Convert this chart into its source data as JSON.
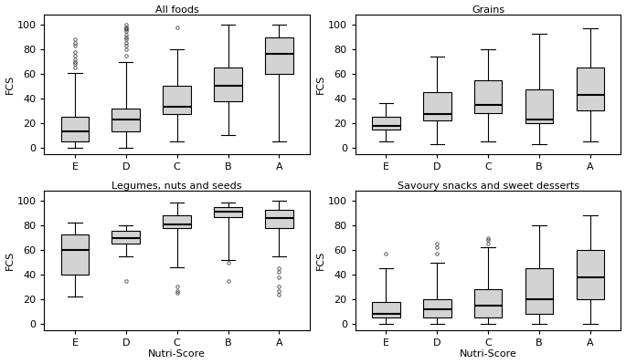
{
  "titles": [
    "All foods",
    "Grains",
    "Legumes, nuts and seeds",
    "Savoury snacks and sweet desserts"
  ],
  "categories": [
    "E",
    "D",
    "C",
    "B",
    "A"
  ],
  "xlabel": "Nutri-Score",
  "ylabel": "FCS",
  "ylim": [
    -5,
    108
  ],
  "yticks": [
    0,
    20,
    40,
    60,
    80,
    100
  ],
  "all_foods": {
    "E": {
      "q1": 5,
      "median": 13,
      "q3": 25,
      "whislo": 0,
      "whishi": 61,
      "fliers_hi": [
        65,
        68,
        70,
        72,
        75,
        78,
        83,
        85,
        88
      ],
      "fliers_lo": []
    },
    "D": {
      "q1": 13,
      "median": 23,
      "q3": 32,
      "whislo": 0,
      "whishi": 70,
      "fliers_hi": [
        75,
        80,
        83,
        85,
        88,
        90,
        92,
        95,
        96,
        97,
        98,
        100
      ],
      "fliers_lo": []
    },
    "C": {
      "q1": 27,
      "median": 33,
      "q3": 50,
      "whislo": 5,
      "whishi": 80,
      "fliers_hi": [
        98
      ],
      "fliers_lo": []
    },
    "B": {
      "q1": 38,
      "median": 50,
      "q3": 65,
      "whislo": 10,
      "whishi": 100,
      "fliers_hi": [],
      "fliers_lo": []
    },
    "A": {
      "q1": 60,
      "median": 76,
      "q3": 90,
      "whislo": 5,
      "whishi": 100,
      "fliers_hi": [],
      "fliers_lo": []
    }
  },
  "grains": {
    "E": {
      "q1": 15,
      "median": 18,
      "q3": 25,
      "whislo": 5,
      "whishi": 36,
      "fliers_hi": [],
      "fliers_lo": []
    },
    "D": {
      "q1": 22,
      "median": 27,
      "q3": 45,
      "whislo": 3,
      "whishi": 74,
      "fliers_hi": [],
      "fliers_lo": []
    },
    "C": {
      "q1": 28,
      "median": 35,
      "q3": 55,
      "whislo": 5,
      "whishi": 80,
      "fliers_hi": [],
      "fliers_lo": []
    },
    "B": {
      "q1": 20,
      "median": 23,
      "q3": 47,
      "whislo": 3,
      "whishi": 93,
      "fliers_hi": [],
      "fliers_lo": []
    },
    "A": {
      "q1": 30,
      "median": 43,
      "q3": 65,
      "whislo": 5,
      "whishi": 97,
      "fliers_hi": [],
      "fliers_lo": []
    }
  },
  "legumes": {
    "E": {
      "q1": 40,
      "median": 60,
      "q3": 73,
      "whislo": 22,
      "whishi": 82,
      "fliers_hi": [],
      "fliers_lo": []
    },
    "D": {
      "q1": 65,
      "median": 70,
      "q3": 76,
      "whislo": 55,
      "whishi": 80,
      "fliers_hi": [],
      "fliers_lo": [
        35
      ]
    },
    "C": {
      "q1": 78,
      "median": 81,
      "q3": 88,
      "whislo": 46,
      "whishi": 99,
      "fliers_hi": [],
      "fliers_lo": [
        25,
        27,
        30
      ]
    },
    "B": {
      "q1": 87,
      "median": 91,
      "q3": 95,
      "whislo": 52,
      "whishi": 99,
      "fliers_hi": [],
      "fliers_lo": [
        35,
        50
      ]
    },
    "A": {
      "q1": 78,
      "median": 86,
      "q3": 93,
      "whislo": 55,
      "whishi": 100,
      "fliers_hi": [],
      "fliers_lo": [
        24,
        27,
        30,
        38,
        42,
        45
      ]
    }
  },
  "savoury": {
    "E": {
      "q1": 5,
      "median": 8,
      "q3": 18,
      "whislo": 0,
      "whishi": 45,
      "fliers_hi": [
        57
      ],
      "fliers_lo": []
    },
    "D": {
      "q1": 5,
      "median": 12,
      "q3": 20,
      "whislo": 0,
      "whishi": 50,
      "fliers_hi": [
        57,
        62,
        65
      ],
      "fliers_lo": []
    },
    "C": {
      "q1": 5,
      "median": 15,
      "q3": 28,
      "whislo": 0,
      "whishi": 62,
      "fliers_hi": [
        65,
        68,
        70
      ],
      "fliers_lo": []
    },
    "B": {
      "q1": 8,
      "median": 20,
      "q3": 45,
      "whislo": 0,
      "whishi": 80,
      "fliers_hi": [],
      "fliers_lo": []
    },
    "A": {
      "q1": 20,
      "median": 38,
      "q3": 60,
      "whislo": 0,
      "whishi": 88,
      "fliers_hi": [],
      "fliers_lo": []
    }
  }
}
